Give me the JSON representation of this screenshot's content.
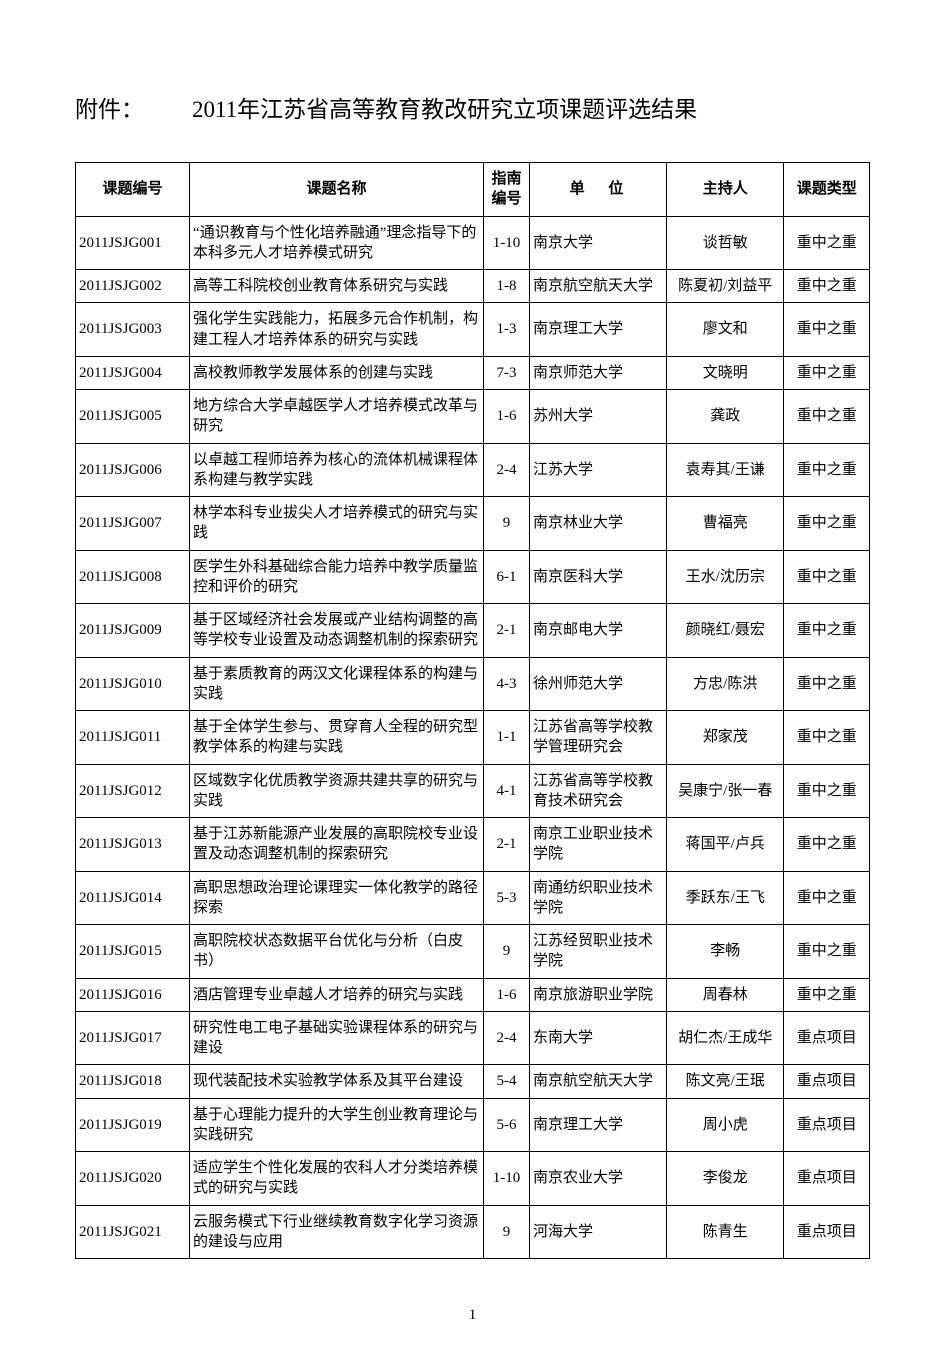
{
  "header": {
    "attach_label": "附件：",
    "title": "2011年江苏省高等教育教改研究立项课题评选结果"
  },
  "table": {
    "columns": {
      "id": "课题编号",
      "name": "课题名称",
      "guide": "指南编号",
      "org": "单  位",
      "host": "主持人",
      "type": "课题类型"
    },
    "rows": [
      {
        "id": "2011JSJG001",
        "name": "“通识教育与个性化培养融通”理念指导下的本科多元人才培养模式研究",
        "guide": "1-10",
        "org": "南京大学",
        "host": "谈哲敏",
        "type": "重中之重"
      },
      {
        "id": "2011JSJG002",
        "name": "高等工科院校创业教育体系研究与实践",
        "guide": "1-8",
        "org": "南京航空航天大学",
        "host": "陈夏初/刘益平",
        "type": "重中之重"
      },
      {
        "id": "2011JSJG003",
        "name": "强化学生实践能力，拓展多元合作机制，构建工程人才培养体系的研究与实践",
        "guide": "1-3",
        "org": "南京理工大学",
        "host": "廖文和",
        "type": "重中之重"
      },
      {
        "id": "2011JSJG004",
        "name": "高校教师教学发展体系的创建与实践",
        "guide": "7-3",
        "org": "南京师范大学",
        "host": "文晓明",
        "type": "重中之重"
      },
      {
        "id": "2011JSJG005",
        "name": "地方综合大学卓越医学人才培养模式改革与研究",
        "guide": "1-6",
        "org": "苏州大学",
        "host": "龚政",
        "type": "重中之重"
      },
      {
        "id": "2011JSJG006",
        "name": "以卓越工程师培养为核心的流体机械课程体系构建与教学实践",
        "guide": "2-4",
        "org": "江苏大学",
        "host": "袁寿其/王谦",
        "type": "重中之重"
      },
      {
        "id": "2011JSJG007",
        "name": "林学本科专业拔尖人才培养模式的研究与实践",
        "guide": "9",
        "org": "南京林业大学",
        "host": "曹福亮",
        "type": "重中之重"
      },
      {
        "id": "2011JSJG008",
        "name": "医学生外科基础综合能力培养中教学质量监控和评价的研究",
        "guide": "6-1",
        "org": "南京医科大学",
        "host": "王水/沈历宗",
        "type": "重中之重"
      },
      {
        "id": "2011JSJG009",
        "name": "基于区域经济社会发展或产业结构调整的高等学校专业设置及动态调整机制的探索研究",
        "guide": "2-1",
        "org": "南京邮电大学",
        "host": "颜晓红/聂宏",
        "type": "重中之重"
      },
      {
        "id": "2011JSJG010",
        "name": "基于素质教育的两汉文化课程体系的构建与实践",
        "guide": "4-3",
        "org": "徐州师范大学",
        "host": "方忠/陈洪",
        "type": "重中之重"
      },
      {
        "id": "2011JSJG011",
        "name": "基于全体学生参与、贯穿育人全程的研究型教学体系的构建与实践",
        "guide": "1-1",
        "org": "江苏省高等学校教学管理研究会",
        "host": "郑家茂",
        "type": "重中之重"
      },
      {
        "id": "2011JSJG012",
        "name": "区域数字化优质教学资源共建共享的研究与实践",
        "guide": "4-1",
        "org": "江苏省高等学校教育技术研究会",
        "host": "吴康宁/张一春",
        "type": "重中之重"
      },
      {
        "id": "2011JSJG013",
        "name": "基于江苏新能源产业发展的高职院校专业设置及动态调整机制的探索研究",
        "guide": "2-1",
        "org": "南京工业职业技术学院",
        "host": "蒋国平/卢兵",
        "type": "重中之重"
      },
      {
        "id": "2011JSJG014",
        "name": "高职思想政治理论课理实一体化教学的路径探索",
        "guide": "5-3",
        "org": "南通纺织职业技术学院",
        "host": "季跃东/王飞",
        "type": "重中之重"
      },
      {
        "id": "2011JSJG015",
        "name": "高职院校状态数据平台优化与分析（白皮书）",
        "guide": "9",
        "org": "江苏经贸职业技术学院",
        "host": "李畅",
        "type": "重中之重"
      },
      {
        "id": "2011JSJG016",
        "name": "酒店管理专业卓越人才培养的研究与实践",
        "guide": "1-6",
        "org": "南京旅游职业学院",
        "host": "周春林",
        "type": "重中之重"
      },
      {
        "id": "2011JSJG017",
        "name": "研究性电工电子基础实验课程体系的研究与建设",
        "guide": "2-4",
        "org": "东南大学",
        "host": "胡仁杰/王成华",
        "type": "重点项目"
      },
      {
        "id": "2011JSJG018",
        "name": "现代装配技术实验教学体系及其平台建设",
        "guide": "5-4",
        "org": "南京航空航天大学",
        "host": "陈文亮/王珉",
        "type": "重点项目"
      },
      {
        "id": "2011JSJG019",
        "name": "基于心理能力提升的大学生创业教育理论与实践研究",
        "guide": "5-6",
        "org": "南京理工大学",
        "host": "周小虎",
        "type": "重点项目"
      },
      {
        "id": "2011JSJG020",
        "name": "适应学生个性化发展的农科人才分类培养模式的研究与实践",
        "guide": "1-10",
        "org": "南京农业大学",
        "host": "李俊龙",
        "type": "重点项目"
      },
      {
        "id": "2011JSJG021",
        "name": "云服务模式下行业继续教育数字化学习资源的建设与应用",
        "guide": "9",
        "org": "河海大学",
        "host": "陈青生",
        "type": "重点项目"
      }
    ]
  },
  "page_number": "1"
}
